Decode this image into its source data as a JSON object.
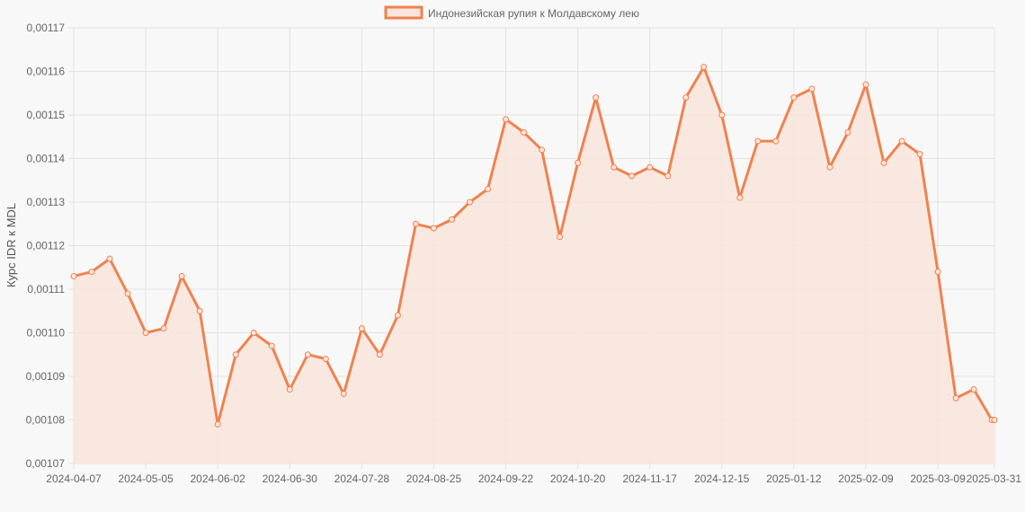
{
  "chart_data": {
    "type": "area",
    "title": "",
    "xlabel": "",
    "ylabel": "Курс IDR к MDL",
    "ylim": [
      0.00107,
      0.00117
    ],
    "y_ticks": [
      "0,00107",
      "0,00108",
      "0,00109",
      "0,00110",
      "0,00111",
      "0,00112",
      "0,00113",
      "0,00114",
      "0,00115",
      "0,00116",
      "0,00117"
    ],
    "x_ticks": [
      "2024-04-07",
      "2024-05-05",
      "2024-06-02",
      "2024-06-30",
      "2024-07-28",
      "2024-08-25",
      "2024-09-22",
      "2024-10-20",
      "2024-11-17",
      "2024-12-15",
      "2025-01-12",
      "2025-02-09",
      "2025-03-09",
      "2025-03-31"
    ],
    "grid": true,
    "legend_position": "top",
    "colors": {
      "line": "#f0824f",
      "fill": "#f9e5dc",
      "grid": "#e2e2e2"
    },
    "series": [
      {
        "name": "Индонезийская рупия к Молдавскому лею",
        "x": [
          "2024-04-07",
          "2024-04-14",
          "2024-04-21",
          "2024-04-28",
          "2024-05-05",
          "2024-05-12",
          "2024-05-19",
          "2024-05-26",
          "2024-06-02",
          "2024-06-09",
          "2024-06-16",
          "2024-06-23",
          "2024-06-30",
          "2024-07-07",
          "2024-07-14",
          "2024-07-21",
          "2024-07-28",
          "2024-08-04",
          "2024-08-11",
          "2024-08-18",
          "2024-08-25",
          "2024-09-01",
          "2024-09-08",
          "2024-09-15",
          "2024-09-22",
          "2024-09-29",
          "2024-10-06",
          "2024-10-13",
          "2024-10-20",
          "2024-10-27",
          "2024-11-03",
          "2024-11-10",
          "2024-11-17",
          "2024-11-24",
          "2024-12-01",
          "2024-12-08",
          "2024-12-15",
          "2024-12-22",
          "2024-12-29",
          "2025-01-05",
          "2025-01-12",
          "2025-01-19",
          "2025-01-26",
          "2025-02-02",
          "2025-02-09",
          "2025-02-16",
          "2025-02-23",
          "2025-03-02",
          "2025-03-09",
          "2025-03-16",
          "2025-03-23",
          "2025-03-30",
          "2025-03-31"
        ],
        "values": [
          0.001113,
          0.001114,
          0.001117,
          0.001109,
          0.0011,
          0.001101,
          0.001113,
          0.001105,
          0.001079,
          0.001095,
          0.0011,
          0.001097,
          0.001087,
          0.001095,
          0.001094,
          0.001086,
          0.001101,
          0.001095,
          0.001104,
          0.001125,
          0.001124,
          0.001126,
          0.00113,
          0.001133,
          0.001149,
          0.001146,
          0.001142,
          0.001122,
          0.001139,
          0.001154,
          0.001138,
          0.001136,
          0.001138,
          0.001136,
          0.001154,
          0.001161,
          0.00115,
          0.001131,
          0.001144,
          0.001144,
          0.001154,
          0.001156,
          0.001138,
          0.001146,
          0.001157,
          0.001139,
          0.001144,
          0.001141,
          0.001114,
          0.001085,
          0.001087,
          0.00108,
          0.00108
        ]
      }
    ]
  }
}
